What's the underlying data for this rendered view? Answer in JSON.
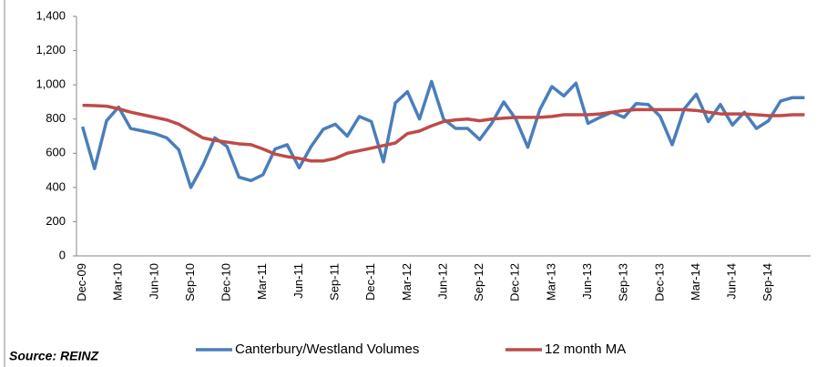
{
  "chart_data": {
    "type": "line",
    "categories": [
      "Dec-09",
      null,
      null,
      "Mar-10",
      null,
      null,
      "Jun-10",
      null,
      null,
      "Sep-10",
      null,
      null,
      "Dec-10",
      null,
      null,
      "Mar-11",
      null,
      null,
      "Jun-11",
      null,
      null,
      "Sep-11",
      null,
      null,
      "Dec-11",
      null,
      null,
      "Mar-12",
      null,
      null,
      "Jun-12",
      null,
      null,
      "Sep-12",
      null,
      null,
      "Dec-12",
      null,
      null,
      "Mar-13",
      null,
      null,
      "Jun-13",
      null,
      null,
      "Sep-13",
      null,
      null,
      "Dec-13",
      null,
      null,
      "Mar-14",
      null,
      null,
      "Jun-14",
      null,
      null,
      "Sep-14",
      null,
      null,
      null
    ],
    "series": [
      {
        "name": "Canterbury/Westland Volumes",
        "color": "#4a7ebb",
        "values": [
          755,
          510,
          790,
          870,
          745,
          730,
          715,
          690,
          620,
          400,
          530,
          690,
          640,
          460,
          440,
          475,
          625,
          650,
          515,
          640,
          740,
          770,
          700,
          815,
          785,
          550,
          895,
          960,
          800,
          1020,
          800,
          745,
          745,
          680,
          775,
          900,
          800,
          635,
          855,
          990,
          935,
          1010,
          775,
          810,
          840,
          810,
          890,
          885,
          815,
          650,
          860,
          945,
          785,
          885,
          765,
          840,
          745,
          790,
          905,
          925,
          925
        ]
      },
      {
        "name": "12 month MA",
        "color": "#be4b48",
        "values": [
          880,
          878,
          875,
          860,
          840,
          825,
          810,
          795,
          770,
          730,
          690,
          675,
          665,
          655,
          650,
          625,
          595,
          580,
          570,
          555,
          555,
          570,
          600,
          615,
          630,
          645,
          660,
          715,
          730,
          760,
          785,
          795,
          800,
          790,
          800,
          805,
          810,
          810,
          810,
          815,
          825,
          825,
          825,
          830,
          840,
          850,
          855,
          855,
          855,
          855,
          855,
          850,
          840,
          830,
          830,
          830,
          825,
          820,
          820,
          825,
          825
        ]
      }
    ],
    "ylim": [
      0,
      1400
    ],
    "yticks": [
      0,
      200,
      400,
      600,
      800,
      {
        "value": 1000,
        "label": "1,000"
      },
      {
        "value": 1200,
        "label": "1,200"
      },
      {
        "value": 1400,
        "label": "1,400"
      }
    ],
    "grid": false,
    "legend": "bottom",
    "source": "Source: REINZ"
  }
}
